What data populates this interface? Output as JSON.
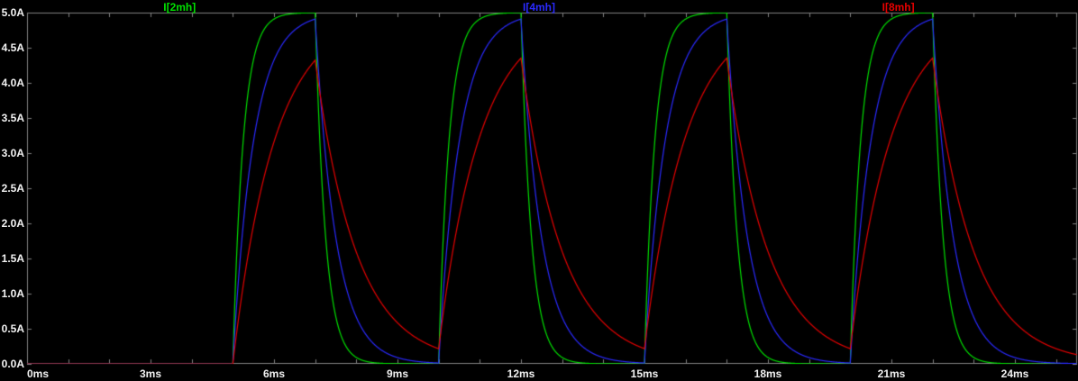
{
  "theme": {
    "background": "#000000",
    "border": "#808080",
    "tick_text": "#f2f2f2"
  },
  "chart_data": {
    "type": "line",
    "title": "",
    "xlabel": "",
    "ylabel": "",
    "x_unit": "ms",
    "y_unit": "A",
    "xlim": [
      0,
      25.5
    ],
    "ylim": [
      0,
      5
    ],
    "grid": false,
    "legend_position": "top",
    "x_tick_values": [
      0,
      3,
      6,
      9,
      12,
      15,
      18,
      21,
      24
    ],
    "x_tick_labels": [
      "0ms",
      "3ms",
      "6ms",
      "9ms",
      "12ms",
      "15ms",
      "18ms",
      "21ms",
      "24ms"
    ],
    "x_minor_tick_step_ms": 1,
    "y_tick_values": [
      5.0,
      4.5,
      4.0,
      3.5,
      3.0,
      2.5,
      2.0,
      1.5,
      1.0,
      0.5,
      0.0
    ],
    "y_tick_labels": [
      "5.0A",
      "4.5A",
      "4.0A",
      "3.5A",
      "3.0A",
      "2.5A",
      "2.0A",
      "1.5A",
      "1.0A",
      "0.5A",
      "0.0A"
    ],
    "excitation": {
      "model": "RL inductor charge/discharge, exponential rise and decay",
      "steady_state_amplitude_A": 5.0,
      "pulse_start_times_ms": [
        5,
        10,
        15,
        20
      ],
      "pulse_width_ms": 2,
      "period_ms": 5,
      "initial_value_A": 0
    },
    "series": [
      {
        "name": "I[2mh]",
        "color": "#00e000",
        "tau_ms": 0.25,
        "peak_A": 5.0,
        "min_between_pulses_A": 0.0
      },
      {
        "name": "I[4mh]",
        "color": "#2a2aff",
        "tau_ms": 0.5,
        "peak_A": 4.91,
        "min_between_pulses_A": 0.01
      },
      {
        "name": "I[8mh]",
        "color": "#e60000",
        "tau_ms": 1.0,
        "peak_A": 4.35,
        "min_between_pulses_A": 0.22
      }
    ]
  }
}
